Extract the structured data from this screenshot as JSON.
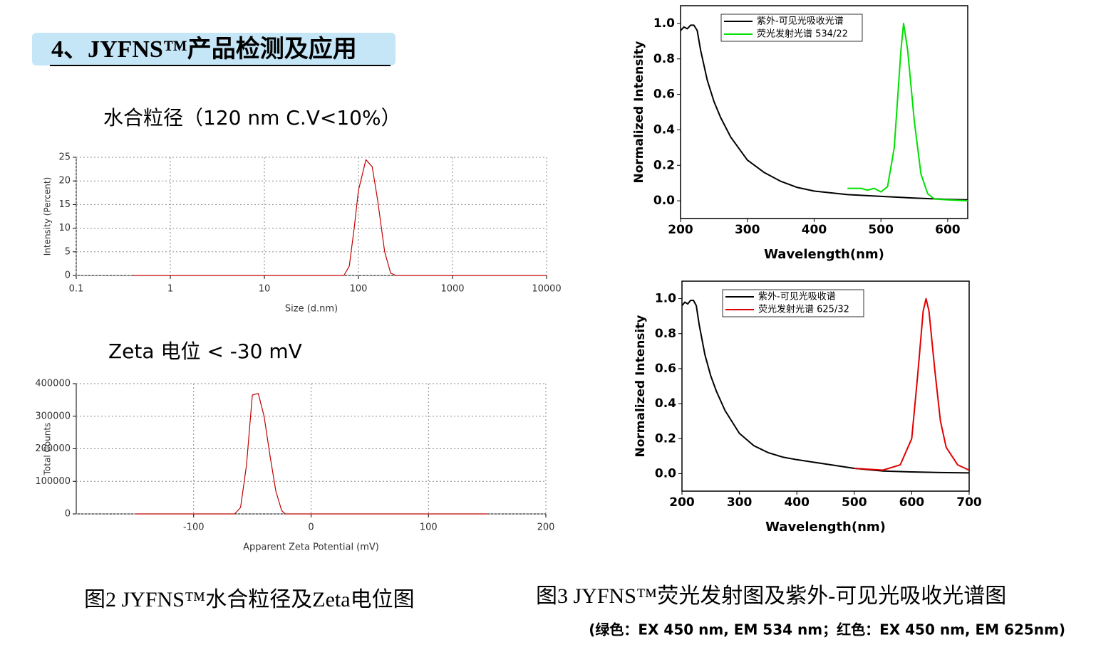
{
  "header": {
    "title": "4、JYFNS™产品检测及应用"
  },
  "subtitles": [
    "水合粒径（120 nm   C.V<10%）",
    "Zeta 电位 < -30 mV"
  ],
  "captions": [
    "图2  JYFNS™水合粒径及Zeta电位图",
    "图3  JYFNS™荧光发射图及紫外-可见光吸收光谱图",
    "(绿色：EX 450 nm,  EM 534 nm；红色：EX 450 nm, EM 625nm)"
  ],
  "chart_data": [
    {
      "type": "line",
      "x_label": "Size (d.nm)",
      "y_label": "Intensity (Percent)",
      "xscale": "log",
      "xlim": [
        0.1,
        10000
      ],
      "xticks": [
        0.1,
        1,
        10,
        100,
        1000,
        10000
      ],
      "ylim": [
        0,
        25
      ],
      "yticks": [
        0,
        5,
        10,
        15,
        20,
        25
      ],
      "grid": true,
      "series": [
        {
          "color": "#c00000",
          "x": [
            0.4,
            60,
            70,
            80,
            90,
            100,
            120,
            140,
            160,
            190,
            220,
            250,
            10000
          ],
          "values": [
            0,
            0,
            0,
            2,
            10,
            18,
            24.5,
            23,
            16,
            5,
            0.5,
            0,
            0
          ]
        }
      ]
    },
    {
      "type": "line",
      "x_label": "Apparent Zeta Potential (mV)",
      "y_label": "Total Counts",
      "xlim": [
        -200,
        200
      ],
      "xticks": [
        -100,
        0,
        100,
        200
      ],
      "ylim": [
        0,
        400000
      ],
      "yticks": [
        0,
        100000,
        200000,
        300000,
        400000
      ],
      "grid": true,
      "series": [
        {
          "color": "#c00000",
          "x": [
            -150,
            -65,
            -60,
            -55,
            -50,
            -45,
            -40,
            -35,
            -30,
            -25,
            -22,
            -20,
            150
          ],
          "values": [
            0,
            0,
            20000,
            150000,
            365000,
            370000,
            300000,
            180000,
            70000,
            10000,
            0,
            0,
            0
          ]
        }
      ]
    },
    {
      "type": "line",
      "x_label": "Wavelength(nm)",
      "y_label": "Normalized Intensity",
      "frame": true,
      "legend": "upper left",
      "xlim": [
        200,
        630
      ],
      "xticks": [
        200,
        300,
        400,
        500,
        600
      ],
      "ylim": [
        -0.1,
        1.1
      ],
      "yticks": [
        {
          "value": 0,
          "label": "0.0"
        },
        0.2,
        0.4,
        0.6,
        0.8,
        {
          "value": 1,
          "label": "1.0"
        }
      ],
      "series": [
        {
          "name": "紫外-可见光吸收光谱",
          "color": "#000000",
          "x": [
            200,
            205,
            210,
            215,
            220,
            225,
            230,
            240,
            250,
            260,
            275,
            300,
            325,
            350,
            375,
            400,
            450,
            500,
            550,
            600,
            630
          ],
          "values": [
            0.96,
            0.98,
            0.97,
            0.99,
            0.99,
            0.96,
            0.85,
            0.68,
            0.56,
            0.47,
            0.36,
            0.23,
            0.16,
            0.11,
            0.075,
            0.055,
            0.035,
            0.025,
            0.015,
            0.008,
            0.005
          ]
        },
        {
          "name": "荧光发射光谱  534/22",
          "color": "#00e000",
          "x": [
            450,
            470,
            480,
            490,
            500,
            510,
            520,
            530,
            534,
            540,
            550,
            560,
            570,
            580,
            600,
            630
          ],
          "values": [
            0.07,
            0.07,
            0.06,
            0.07,
            0.05,
            0.08,
            0.3,
            0.85,
            1.0,
            0.85,
            0.45,
            0.15,
            0.04,
            0.01,
            0.005,
            0
          ]
        }
      ]
    },
    {
      "type": "line",
      "x_label": "Wavelength(nm)",
      "y_label": "Normalized Intensity",
      "frame": true,
      "legend": "upper left",
      "xlim": [
        200,
        700
      ],
      "xticks": [
        200,
        300,
        400,
        500,
        600,
        700
      ],
      "ylim": [
        -0.1,
        1.1
      ],
      "yticks": [
        {
          "value": 0,
          "label": "0.0"
        },
        0.2,
        0.4,
        0.6,
        0.8,
        {
          "value": 1,
          "label": "1.0"
        }
      ],
      "series": [
        {
          "name": "紫外-可见光吸收谱",
          "color": "#000000",
          "x": [
            200,
            205,
            210,
            215,
            220,
            225,
            230,
            240,
            250,
            260,
            275,
            300,
            325,
            350,
            375,
            400,
            450,
            500,
            550,
            600,
            650,
            700
          ],
          "values": [
            0.96,
            0.98,
            0.97,
            0.99,
            0.99,
            0.96,
            0.85,
            0.68,
            0.56,
            0.47,
            0.36,
            0.23,
            0.16,
            0.12,
            0.095,
            0.08,
            0.055,
            0.03,
            0.015,
            0.01,
            0.006,
            0.004
          ]
        },
        {
          "name": "荧光发射光谱 625/32",
          "color": "#e00000",
          "x": [
            500,
            550,
            580,
            600,
            610,
            620,
            625,
            630,
            640,
            650,
            660,
            680,
            700
          ],
          "values": [
            0.03,
            0.02,
            0.05,
            0.2,
            0.55,
            0.93,
            1.0,
            0.93,
            0.6,
            0.3,
            0.15,
            0.05,
            0.02
          ]
        }
      ]
    }
  ]
}
